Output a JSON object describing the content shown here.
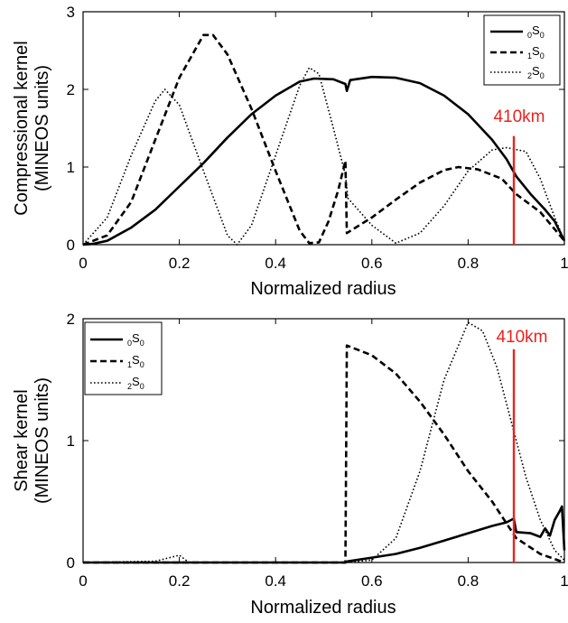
{
  "chart_data": [
    {
      "type": "line",
      "ylabel": [
        "Compressional kernel",
        "(MINEOS units)"
      ],
      "xlabel": "Normalized radius",
      "xlim": [
        0,
        1
      ],
      "ylim": [
        0,
        3
      ],
      "xticks": [
        0,
        0.2,
        0.4,
        0.6,
        0.8,
        1
      ],
      "xtick_labels": [
        "0",
        "0.2",
        "0.4",
        "0.6",
        "0.8",
        "1"
      ],
      "yticks": [
        0,
        1,
        2,
        3
      ],
      "ytick_labels": [
        "0",
        "1",
        "2",
        "3"
      ],
      "legend_position": "top-right",
      "marker": {
        "x": 0.895,
        "y0": 0,
        "y1": 1.4,
        "label": "410km",
        "color": "#e8231f"
      },
      "series": [
        {
          "label": {
            "pre": "0",
            "base": "S",
            "sub": "0"
          },
          "style": "solid",
          "points": [
            [
              0,
              0
            ],
            [
              0.02,
              0.01
            ],
            [
              0.05,
              0.05
            ],
            [
              0.1,
              0.22
            ],
            [
              0.15,
              0.45
            ],
            [
              0.2,
              0.75
            ],
            [
              0.25,
              1.05
            ],
            [
              0.3,
              1.38
            ],
            [
              0.35,
              1.68
            ],
            [
              0.4,
              1.92
            ],
            [
              0.45,
              2.1
            ],
            [
              0.48,
              2.14
            ],
            [
              0.52,
              2.13
            ],
            [
              0.545,
              2.07
            ],
            [
              0.548,
              1.98
            ],
            [
              0.555,
              2.12
            ],
            [
              0.6,
              2.16
            ],
            [
              0.65,
              2.15
            ],
            [
              0.7,
              2.08
            ],
            [
              0.75,
              1.92
            ],
            [
              0.8,
              1.68
            ],
            [
              0.85,
              1.35
            ],
            [
              0.88,
              1.1
            ],
            [
              0.9,
              0.88
            ],
            [
              0.93,
              0.65
            ],
            [
              0.96,
              0.45
            ],
            [
              0.98,
              0.3
            ],
            [
              1,
              0.05
            ]
          ]
        },
        {
          "label": {
            "pre": "1",
            "base": "S",
            "sub": "0"
          },
          "style": "dashed",
          "points": [
            [
              0,
              0
            ],
            [
              0.05,
              0.12
            ],
            [
              0.1,
              0.55
            ],
            [
              0.15,
              1.35
            ],
            [
              0.2,
              2.15
            ],
            [
              0.25,
              2.7
            ],
            [
              0.27,
              2.7
            ],
            [
              0.3,
              2.45
            ],
            [
              0.35,
              1.75
            ],
            [
              0.4,
              0.95
            ],
            [
              0.45,
              0.18
            ],
            [
              0.47,
              0.02
            ],
            [
              0.49,
              0.03
            ],
            [
              0.51,
              0.3
            ],
            [
              0.53,
              0.7
            ],
            [
              0.545,
              1.08
            ],
            [
              0.548,
              0.15
            ],
            [
              0.6,
              0.35
            ],
            [
              0.65,
              0.58
            ],
            [
              0.7,
              0.8
            ],
            [
              0.75,
              0.96
            ],
            [
              0.78,
              1.0
            ],
            [
              0.82,
              0.97
            ],
            [
              0.87,
              0.85
            ],
            [
              0.9,
              0.65
            ],
            [
              0.95,
              0.42
            ],
            [
              1,
              0.05
            ]
          ]
        },
        {
          "label": {
            "pre": "2",
            "base": "S",
            "sub": "0"
          },
          "style": "dotted",
          "points": [
            [
              0,
              0
            ],
            [
              0.05,
              0.35
            ],
            [
              0.1,
              1.15
            ],
            [
              0.15,
              1.85
            ],
            [
              0.17,
              2.0
            ],
            [
              0.2,
              1.8
            ],
            [
              0.25,
              0.95
            ],
            [
              0.3,
              0.12
            ],
            [
              0.32,
              0.0
            ],
            [
              0.35,
              0.25
            ],
            [
              0.4,
              1.15
            ],
            [
              0.45,
              2.05
            ],
            [
              0.47,
              2.28
            ],
            [
              0.49,
              2.2
            ],
            [
              0.52,
              1.5
            ],
            [
              0.545,
              0.9
            ],
            [
              0.55,
              0.6
            ],
            [
              0.6,
              0.25
            ],
            [
              0.65,
              0.02
            ],
            [
              0.7,
              0.15
            ],
            [
              0.75,
              0.5
            ],
            [
              0.8,
              0.95
            ],
            [
              0.85,
              1.22
            ],
            [
              0.88,
              1.25
            ],
            [
              0.92,
              1.2
            ],
            [
              0.95,
              0.85
            ],
            [
              0.98,
              0.35
            ],
            [
              1,
              0.05
            ]
          ]
        }
      ]
    },
    {
      "type": "line",
      "ylabel": [
        "Shear kernel",
        "(MINEOS units)"
      ],
      "xlabel": "Normalized radius",
      "xlim": [
        0,
        1
      ],
      "ylim": [
        0,
        2
      ],
      "xticks": [
        0,
        0.2,
        0.4,
        0.6,
        0.8,
        1
      ],
      "xtick_labels": [
        "0",
        "0.2",
        "0.4",
        "0.6",
        "0.8",
        "1"
      ],
      "yticks": [
        0,
        1,
        2
      ],
      "ytick_labels": [
        "0",
        "1",
        "2"
      ],
      "legend_position": "top-left",
      "marker": {
        "x": 0.895,
        "y0": 0,
        "y1": 1.75,
        "label": "410km",
        "color": "#e8231f"
      },
      "series": [
        {
          "label": {
            "pre": "0",
            "base": "S",
            "sub": "0"
          },
          "style": "solid",
          "points": [
            [
              0,
              0
            ],
            [
              0.545,
              0
            ],
            [
              0.55,
              0.01
            ],
            [
              0.6,
              0.04
            ],
            [
              0.65,
              0.07
            ],
            [
              0.7,
              0.12
            ],
            [
              0.75,
              0.18
            ],
            [
              0.8,
              0.24
            ],
            [
              0.85,
              0.3
            ],
            [
              0.88,
              0.33
            ],
            [
              0.895,
              0.36
            ],
            [
              0.9,
              0.25
            ],
            [
              0.93,
              0.24
            ],
            [
              0.95,
              0.21
            ],
            [
              0.96,
              0.28
            ],
            [
              0.97,
              0.22
            ],
            [
              0.98,
              0.35
            ],
            [
              0.99,
              0.42
            ],
            [
              0.995,
              0.46
            ],
            [
              1,
              0.1
            ]
          ]
        },
        {
          "label": {
            "pre": "1",
            "base": "S",
            "sub": "0"
          },
          "style": "dashed",
          "points": [
            [
              0,
              0
            ],
            [
              0.545,
              0
            ],
            [
              0.548,
              1.78
            ],
            [
              0.6,
              1.7
            ],
            [
              0.65,
              1.55
            ],
            [
              0.7,
              1.32
            ],
            [
              0.75,
              1.05
            ],
            [
              0.8,
              0.75
            ],
            [
              0.85,
              0.5
            ],
            [
              0.88,
              0.32
            ],
            [
              0.9,
              0.2
            ],
            [
              0.95,
              0.07
            ],
            [
              1,
              0
            ]
          ]
        },
        {
          "label": {
            "pre": "2",
            "base": "S",
            "sub": "0"
          },
          "style": "dotted",
          "points": [
            [
              0,
              0
            ],
            [
              0.15,
              0.01
            ],
            [
              0.18,
              0.04
            ],
            [
              0.2,
              0.06
            ],
            [
              0.22,
              0
            ],
            [
              0.545,
              0
            ],
            [
              0.6,
              0.02
            ],
            [
              0.65,
              0.2
            ],
            [
              0.7,
              0.75
            ],
            [
              0.75,
              1.5
            ],
            [
              0.8,
              1.97
            ],
            [
              0.83,
              1.9
            ],
            [
              0.86,
              1.6
            ],
            [
              0.89,
              1.15
            ],
            [
              0.92,
              0.7
            ],
            [
              0.95,
              0.35
            ],
            [
              0.98,
              0.1
            ],
            [
              1,
              0.02
            ]
          ]
        }
      ]
    }
  ]
}
